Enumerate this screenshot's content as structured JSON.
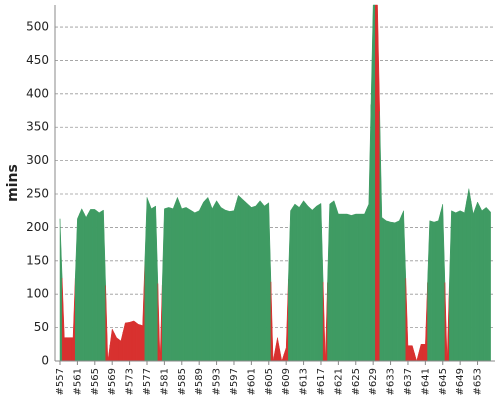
{
  "chart_data": {
    "type": "area",
    "y_label": "mins",
    "categories": [
      "#557",
      null,
      null,
      null,
      "#561",
      null,
      null,
      null,
      "#565",
      null,
      null,
      null,
      "#569",
      null,
      null,
      null,
      "#573",
      null,
      null,
      null,
      "#577",
      null,
      null,
      null,
      "#581",
      null,
      null,
      null,
      "#585",
      null,
      null,
      null,
      "#589",
      null,
      null,
      null,
      "#593",
      null,
      null,
      null,
      "#597",
      null,
      null,
      null,
      "#601",
      null,
      null,
      null,
      "#605",
      null,
      null,
      null,
      "#609",
      null,
      null,
      null,
      "#613",
      null,
      null,
      null,
      "#617",
      null,
      null,
      null,
      "#621",
      null,
      null,
      null,
      "#625",
      null,
      null,
      null,
      "#629",
      null,
      null,
      null,
      "#633",
      null,
      null,
      null,
      "#637",
      null,
      null,
      null,
      "#641",
      null,
      null,
      null,
      "#645",
      null,
      null,
      null,
      "#649",
      null,
      null,
      null,
      "#653",
      null,
      null,
      null
    ],
    "series": [
      {
        "color": "#3f9b63",
        "values": [
          213,
          null,
          null,
          null,
          213,
          228,
          215,
          227,
          227,
          222,
          226,
          null,
          null,
          null,
          null,
          null,
          null,
          null,
          null,
          null,
          245,
          228,
          232,
          null,
          228,
          230,
          228,
          245,
          228,
          230,
          226,
          222,
          225,
          238,
          245,
          228,
          240,
          230,
          226,
          224,
          225,
          248,
          242,
          236,
          230,
          232,
          240,
          232,
          237,
          null,
          null,
          null,
          null,
          225,
          235,
          230,
          240,
          232,
          226,
          232,
          236,
          null,
          235,
          240,
          220,
          220,
          220,
          218,
          220,
          220,
          220,
          235,
          533,
          null,
          215,
          210,
          208,
          207,
          210,
          225,
          null,
          null,
          null,
          null,
          null,
          210,
          208,
          210,
          235,
          null,
          225,
          222,
          225,
          222,
          258,
          220,
          238,
          225,
          230,
          223
        ]
      },
      {
        "color": "#d8312f",
        "values": [
          null,
          35,
          35,
          35,
          null,
          null,
          null,
          null,
          null,
          null,
          null,
          0,
          48,
          35,
          30,
          57,
          58,
          60,
          55,
          53,
          null,
          null,
          null,
          0,
          null,
          null,
          null,
          null,
          null,
          null,
          null,
          null,
          null,
          null,
          null,
          null,
          null,
          null,
          null,
          null,
          null,
          null,
          null,
          null,
          null,
          null,
          null,
          null,
          null,
          0,
          35,
          0,
          20,
          null,
          null,
          null,
          null,
          null,
          null,
          null,
          null,
          0,
          null,
          null,
          null,
          null,
          null,
          null,
          null,
          null,
          null,
          null,
          null,
          533,
          null,
          null,
          null,
          null,
          null,
          null,
          23,
          23,
          0,
          25,
          25,
          null,
          null,
          null,
          null,
          0,
          null,
          null,
          null,
          null,
          null,
          null,
          null,
          null,
          null,
          null
        ]
      }
    ],
    "ylim": [
      0,
      533
    ],
    "yticks": [
      0,
      50,
      100,
      150,
      200,
      250,
      300,
      350,
      400,
      450,
      500
    ],
    "grid": true
  }
}
